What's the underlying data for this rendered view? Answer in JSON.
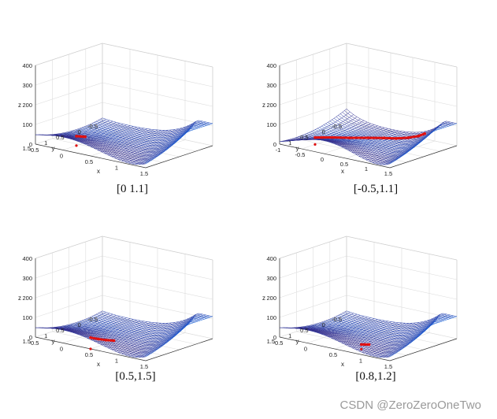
{
  "chart_data": [
    {
      "type": "surface",
      "caption": "[0 1.1]",
      "xlabel": "x",
      "ylabel": "y",
      "zlabel": "z",
      "xticks": [
        "-0.5",
        "0",
        "0.5",
        "1",
        "1.5"
      ],
      "yticks": [
        "-0.5",
        "0",
        "0.5",
        "1",
        "1.5"
      ],
      "zticks": [
        "0",
        "100",
        "200",
        "300",
        "400"
      ],
      "xlim": [
        -0.5,
        1.5
      ],
      "ylim": [
        -0.5,
        1.5
      ],
      "zlim": [
        0,
        400
      ],
      "start_point": [
        0,
        1.1
      ],
      "trajectory": [
        [
          0,
          1.1
        ],
        [
          0.02,
          1.0
        ],
        [
          0.04,
          0.95
        ],
        [
          0.05,
          0.92
        ]
      ]
    },
    {
      "type": "surface",
      "caption": "[-0.5,1.1]",
      "xlabel": "x",
      "ylabel": "y",
      "zlabel": "z",
      "xticks": [
        "-1",
        "-0.5",
        "0",
        "0.5",
        "1",
        "1.5"
      ],
      "yticks": [
        "-0.5",
        "0",
        "0.5",
        "1"
      ],
      "zticks": [
        "0",
        "100",
        "200",
        "300",
        "400"
      ],
      "xlim": [
        -1,
        1.5
      ],
      "ylim": [
        -0.5,
        1.5
      ],
      "zlim": [
        0,
        400
      ],
      "start_point": [
        -0.5,
        1.1
      ],
      "trajectory": [
        [
          -0.5,
          1.1
        ],
        [
          -0.42,
          1.0
        ],
        [
          -0.3,
          0.85
        ],
        [
          -0.1,
          0.6
        ],
        [
          0.1,
          0.3
        ],
        [
          0.3,
          0.1
        ],
        [
          0.5,
          0.0
        ],
        [
          0.7,
          -0.1
        ],
        [
          0.9,
          -0.15
        ],
        [
          1.0,
          -0.2
        ]
      ]
    },
    {
      "type": "surface",
      "caption": "[0.5,1.5]",
      "xlabel": "x",
      "ylabel": "y",
      "zlabel": "z",
      "xticks": [
        "-0.5",
        "0",
        "0.5",
        "1",
        "1.5"
      ],
      "yticks": [
        "-0.5",
        "0",
        "0.5",
        "1",
        "1.5"
      ],
      "zticks": [
        "0",
        "100",
        "200",
        "300",
        "400"
      ],
      "xlim": [
        -0.5,
        1.5
      ],
      "ylim": [
        -0.5,
        1.5
      ],
      "zlim": [
        0,
        400
      ],
      "start_point": [
        0.5,
        1.5
      ],
      "trajectory": [
        [
          0.5,
          1.5
        ],
        [
          0.55,
          1.35
        ],
        [
          0.6,
          1.2
        ],
        [
          0.65,
          1.05
        ]
      ]
    },
    {
      "type": "surface",
      "caption": "[0.8,1.2]",
      "xlabel": "x",
      "ylabel": "y",
      "zlabel": "z",
      "xticks": [
        "-0.5",
        "0",
        "0.5",
        "1",
        "1.5"
      ],
      "yticks": [
        "-0.5",
        "0",
        "0.5",
        "1",
        "1.5"
      ],
      "zticks": [
        "0",
        "100",
        "200",
        "300",
        "400"
      ],
      "xlim": [
        -0.5,
        1.5
      ],
      "ylim": [
        -0.5,
        1.5
      ],
      "zlim": [
        0,
        400
      ],
      "start_point": [
        0.8,
        1.2
      ],
      "trajectory": [
        [
          0.8,
          1.2
        ],
        [
          0.82,
          1.12
        ],
        [
          0.85,
          1.05
        ]
      ]
    }
  ],
  "watermark": "CSDN @ZeroZeroOneTwo"
}
